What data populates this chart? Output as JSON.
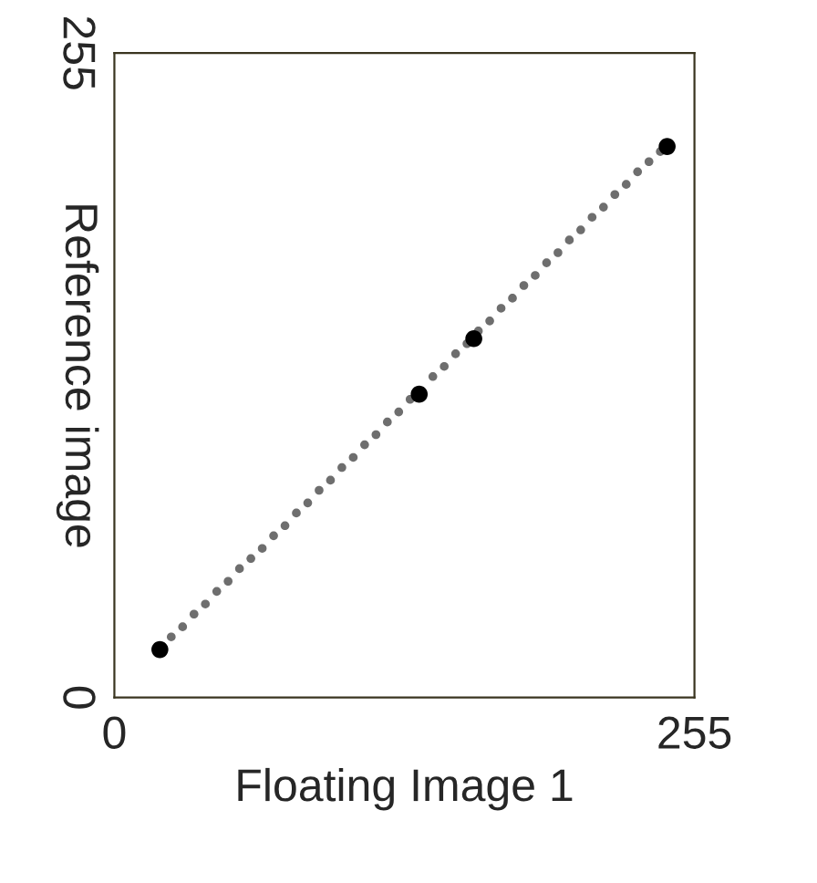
{
  "chart_data": {
    "type": "scatter",
    "xlabel": "Floating Image 1",
    "ylabel": "Reference image",
    "xlim": [
      0,
      255
    ],
    "ylim": [
      0,
      255
    ],
    "xticks": [
      0,
      255
    ],
    "yticks": [
      0,
      255
    ],
    "marker": "circle",
    "grid": false,
    "legend": false,
    "series": [
      {
        "color": "#6e6e6e",
        "x": [
          25,
          30,
          35,
          40,
          45,
          50,
          55,
          60,
          65,
          70,
          75,
          80,
          85,
          90,
          95,
          100,
          105,
          110,
          115,
          120,
          125,
          130,
          140,
          145,
          150,
          155,
          160,
          165,
          170,
          175,
          180,
          185,
          190,
          195,
          200,
          205,
          210,
          215,
          220,
          225,
          230,
          235,
          240
        ],
        "values": [
          24,
          28,
          33,
          37,
          42,
          46,
          51,
          55,
          59,
          64,
          68,
          73,
          77,
          82,
          86,
          91,
          95,
          100,
          104,
          109,
          113,
          118,
          127,
          131,
          136,
          140,
          145,
          149,
          154,
          158,
          163,
          167,
          172,
          176,
          181,
          185,
          190,
          194,
          199,
          203,
          208,
          212,
          216
        ]
      },
      {
        "color": "#000000",
        "x": [
          20,
          134,
          158,
          243
        ],
        "values": [
          19,
          120,
          142,
          218
        ]
      }
    ]
  }
}
